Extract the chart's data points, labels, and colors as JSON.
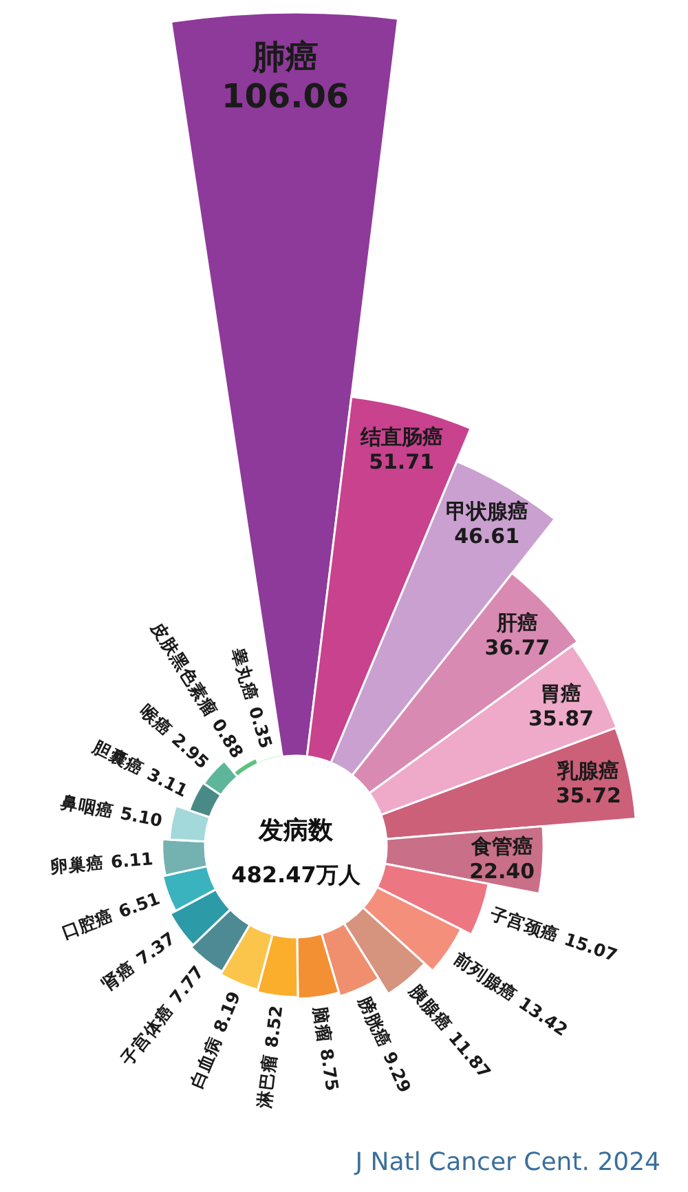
{
  "chart_data": {
    "type": "other",
    "categories": [
      "肺癌",
      "结直肠癌",
      "甲状腺癌",
      "肝癌",
      "胃癌",
      "乳腺癌",
      "食管癌",
      "子宫颈癌",
      "前列腺癌",
      "胰腺癌",
      "膀胱癌",
      "脑瘤",
      "淋巴瘤",
      "白血病",
      "子宫体癌",
      "肾癌",
      "口腔癌",
      "卵巢癌",
      "鼻咽癌",
      "胆囊癌",
      "喉癌",
      "皮肤黑色素瘤",
      "睾丸癌"
    ],
    "values": [
      106.06,
      51.71,
      46.61,
      36.77,
      35.87,
      35.72,
      22.4,
      15.07,
      13.42,
      11.87,
      9.29,
      8.75,
      8.52,
      8.19,
      7.77,
      7.37,
      6.51,
      6.11,
      5.1,
      3.11,
      2.95,
      0.88,
      0.35
    ],
    "value_labels": [
      "106.06",
      "51.71",
      "46.61",
      "36.77",
      "35.87",
      "35.72",
      "22.40",
      "15.07",
      "13.42",
      "11.87",
      "9.29",
      "8.75",
      "8.52",
      "8.19",
      "7.77",
      "7.37",
      "6.51",
      "6.11",
      "5.10",
      "3.11",
      "2.95",
      "0.88",
      "0.35"
    ],
    "colors": [
      "#8e3a9a",
      "#c8428e",
      "#c9a0cf",
      "#d98ab2",
      "#eeaac8",
      "#cc6079",
      "#c97088",
      "#ec7682",
      "#f48f7c",
      "#d6937e",
      "#ef8f6e",
      "#f39034",
      "#fbae2c",
      "#fbc54c",
      "#4e8a93",
      "#2d9aa8",
      "#3ab3bf",
      "#74b1b1",
      "#a4d9dc",
      "#4a8a86",
      "#5db69a",
      "#5cc37f",
      "#9ed8b2"
    ],
    "annotations": [
      "发病数",
      "482.47万人",
      "J Natl Cancer Cent. 2024"
    ]
  }
}
